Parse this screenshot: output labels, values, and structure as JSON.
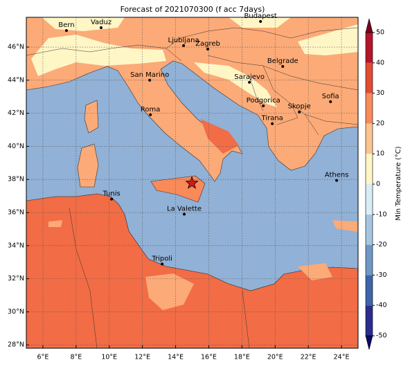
{
  "title": "Forecast of 2021070300 (f acc 7days)",
  "map": {
    "lon_range": [
      5,
      25
    ],
    "lat_range": [
      27.8,
      47.8
    ],
    "grid": true,
    "lon_ticks": [
      {
        "value": 6,
        "label": "6°E"
      },
      {
        "value": 8,
        "label": "8°E"
      },
      {
        "value": 10,
        "label": "10°E"
      },
      {
        "value": 12,
        "label": "12°E"
      },
      {
        "value": 14,
        "label": "14°E"
      },
      {
        "value": 16,
        "label": "16°E"
      },
      {
        "value": 18,
        "label": "18°E"
      },
      {
        "value": 20,
        "label": "20°E"
      },
      {
        "value": 22,
        "label": "22°E"
      },
      {
        "value": 24,
        "label": "24°E"
      }
    ],
    "lat_ticks": [
      {
        "value": 28,
        "label": "28°N"
      },
      {
        "value": 30,
        "label": "30°N"
      },
      {
        "value": 32,
        "label": "32°N"
      },
      {
        "value": 34,
        "label": "34°N"
      },
      {
        "value": 36,
        "label": "36°N"
      },
      {
        "value": 38,
        "label": "38°N"
      },
      {
        "value": 40,
        "label": "40°N"
      },
      {
        "value": 42,
        "label": "42°N"
      },
      {
        "value": 44,
        "label": "44°N"
      },
      {
        "value": 46,
        "label": "46°N"
      }
    ]
  },
  "cities": [
    {
      "name": "Bern",
      "lon": 7.42,
      "lat": 47.0
    },
    {
      "name": "Vaduz",
      "lon": 9.51,
      "lat": 47.17
    },
    {
      "name": "Budapest",
      "lon": 19.12,
      "lat": 47.55
    },
    {
      "name": "Ljubljana",
      "lon": 14.48,
      "lat": 46.09
    },
    {
      "name": "Zagreb",
      "lon": 15.94,
      "lat": 45.88
    },
    {
      "name": "Belgrade",
      "lon": 20.46,
      "lat": 44.83
    },
    {
      "name": "San Marino",
      "lon": 12.44,
      "lat": 44.0
    },
    {
      "name": "Sarajevo",
      "lon": 18.45,
      "lat": 43.87
    },
    {
      "name": "Sofia",
      "lon": 23.34,
      "lat": 42.7
    },
    {
      "name": "Podgorica",
      "lon": 19.29,
      "lat": 42.45
    },
    {
      "name": "Skopje",
      "lon": 21.46,
      "lat": 42.08
    },
    {
      "name": "Roma",
      "lon": 12.48,
      "lat": 41.91
    },
    {
      "name": "Tirana",
      "lon": 19.83,
      "lat": 41.37
    },
    {
      "name": "Athens",
      "lon": 23.71,
      "lat": 37.94
    },
    {
      "name": "Tunis",
      "lon": 10.14,
      "lat": 36.81
    },
    {
      "name": "La Valette",
      "lon": 14.52,
      "lat": 35.9
    },
    {
      "name": "Tripoli",
      "lon": 13.19,
      "lat": 32.89
    }
  ],
  "event": {
    "lon": 14.98,
    "lat": 37.78,
    "color": "#d7191c"
  },
  "colorbar": {
    "label": "Min Temperature (°C)",
    "range": [
      -50,
      50
    ],
    "ticks": [
      -50,
      -40,
      -30,
      -20,
      -10,
      0,
      10,
      20,
      30,
      40,
      50
    ],
    "colors": [
      "#2c2c8f",
      "#3f64a8",
      "#6f97c5",
      "#a5c6de",
      "#d9edf5",
      "#fff6c6",
      "#fcc48f",
      "#f98a5a",
      "#e34b33",
      "#b5142a"
    ],
    "under_color": "#0a0a6a",
    "over_color": "#7a0022"
  }
}
